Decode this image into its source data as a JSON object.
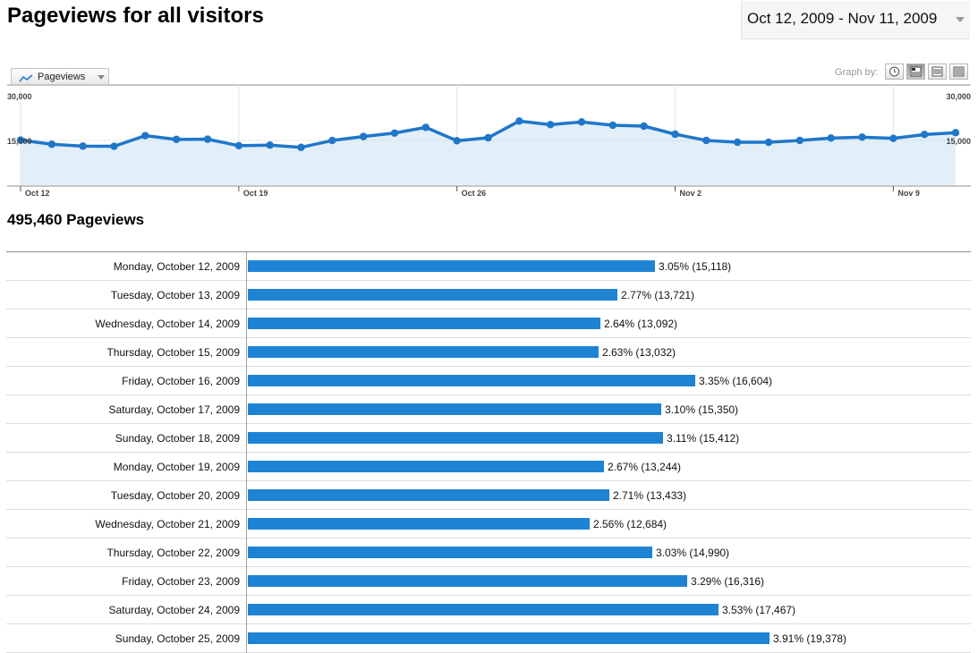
{
  "header": {
    "title": "Pageviews for all visitors",
    "date_range": "Oct 12, 2009 - Nov 11, 2009"
  },
  "toolbar": {
    "metric_label": "Pageviews",
    "graph_by_label": "Graph by:",
    "graph_by_options": [
      "hour-icon",
      "day-icon",
      "week-icon",
      "month-icon"
    ],
    "graph_by_selected": "day"
  },
  "colors": {
    "line": "#1f77c9",
    "area": "#e2eff9",
    "bar": "#1f83d3"
  },
  "chart_data": {
    "type": "area",
    "y_ticks_left": [
      "30,000",
      "15,000"
    ],
    "y_ticks_right": [
      "30,000",
      "15,000"
    ],
    "ylim": [
      0,
      30000
    ],
    "x_tick_labels": [
      "Oct 12",
      "Oct 19",
      "Oct 26",
      "Nov 2",
      "Nov 9"
    ],
    "x_tick_indices": [
      0,
      7,
      14,
      21,
      28
    ],
    "series": [
      {
        "values": [
          15118,
          13721,
          13092,
          13032,
          16604,
          15350,
          15412,
          13244,
          13433,
          12684,
          14990,
          16316,
          17467,
          19378,
          14900,
          15900,
          21500,
          20300,
          21200,
          20100,
          19800,
          17100,
          15000,
          14400,
          14400,
          15000,
          15800,
          16100,
          15700,
          17000,
          17600
        ]
      }
    ],
    "grid": "vertical-weekly"
  },
  "summary": {
    "total": "495,460 Pageviews"
  },
  "table": {
    "rows": [
      {
        "label": "Monday, October 12, 2009",
        "pct": 3.05,
        "value": "3.05% (15,118)"
      },
      {
        "label": "Tuesday, October 13, 2009",
        "pct": 2.77,
        "value": "2.77% (13,721)"
      },
      {
        "label": "Wednesday, October 14, 2009",
        "pct": 2.64,
        "value": "2.64% (13,092)"
      },
      {
        "label": "Thursday, October 15, 2009",
        "pct": 2.63,
        "value": "2.63% (13,032)"
      },
      {
        "label": "Friday, October 16, 2009",
        "pct": 3.35,
        "value": "3.35% (16,604)"
      },
      {
        "label": "Saturday, October 17, 2009",
        "pct": 3.1,
        "value": "3.10% (15,350)"
      },
      {
        "label": "Sunday, October 18, 2009",
        "pct": 3.11,
        "value": "3.11% (15,412)"
      },
      {
        "label": "Monday, October 19, 2009",
        "pct": 2.67,
        "value": "2.67% (13,244)"
      },
      {
        "label": "Tuesday, October 20, 2009",
        "pct": 2.71,
        "value": "2.71% (13,433)"
      },
      {
        "label": "Wednesday, October 21, 2009",
        "pct": 2.56,
        "value": "2.56% (12,684)"
      },
      {
        "label": "Thursday, October 22, 2009",
        "pct": 3.03,
        "value": "3.03% (14,990)"
      },
      {
        "label": "Friday, October 23, 2009",
        "pct": 3.29,
        "value": "3.29% (16,316)"
      },
      {
        "label": "Saturday, October 24, 2009",
        "pct": 3.53,
        "value": "3.53% (17,467)"
      },
      {
        "label": "Sunday, October 25, 2009",
        "pct": 3.91,
        "value": "3.91% (19,378)"
      }
    ]
  }
}
